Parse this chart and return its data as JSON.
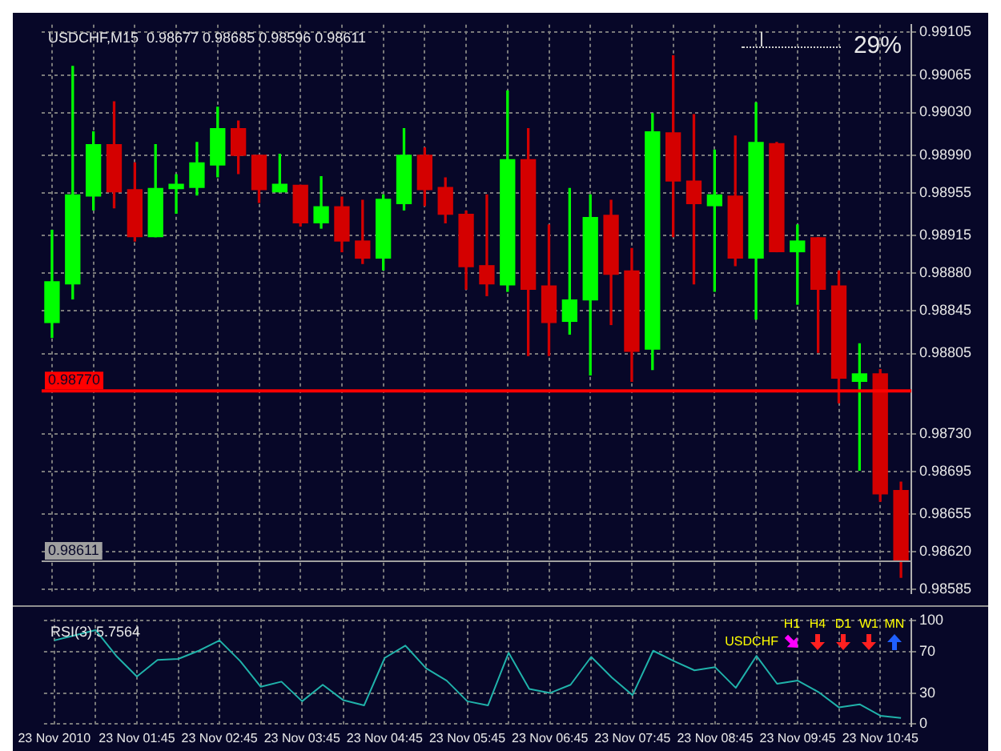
{
  "chart_data": [
    {
      "type": "candlestick",
      "title": "USDCHF,M15  0.98677 0.98685 0.98596 0.98611",
      "categories": [
        null,
        null,
        null,
        null,
        null,
        null,
        null,
        null,
        null,
        null,
        null,
        null,
        null,
        null,
        null,
        null,
        null,
        null,
        null,
        null,
        null,
        null,
        null,
        null,
        null,
        null,
        null,
        null,
        null,
        null,
        null,
        null,
        null,
        null,
        null,
        null,
        null,
        null,
        null,
        null,
        null,
        null
      ],
      "ohlc": [
        [
          0.98834,
          0.9892,
          0.9882,
          0.98872
        ],
        [
          0.9887,
          0.99073,
          0.98856,
          0.98953
        ],
        [
          0.98952,
          0.99012,
          0.98939,
          0.99
        ],
        [
          0.99,
          0.9904,
          0.98941,
          0.98956
        ],
        [
          0.98958,
          0.98983,
          0.9891,
          0.98914
        ],
        [
          0.98914,
          0.99,
          0.98914,
          0.98959
        ],
        [
          0.98959,
          0.98972,
          0.98936,
          0.98963
        ],
        [
          0.9896,
          0.99002,
          0.98953,
          0.98983
        ],
        [
          0.98981,
          0.99035,
          0.9897,
          0.99015
        ],
        [
          0.99015,
          0.99022,
          0.98973,
          0.9899
        ],
        [
          0.9899,
          0.9899,
          0.98946,
          0.98958
        ],
        [
          0.98956,
          0.98991,
          0.98956,
          0.98963
        ],
        [
          0.98962,
          0.98962,
          0.98924,
          0.98927
        ],
        [
          0.98927,
          0.9897,
          0.98922,
          0.98942
        ],
        [
          0.98942,
          0.98951,
          0.989,
          0.9891
        ],
        [
          0.9891,
          0.98948,
          0.98889,
          0.98894
        ],
        [
          0.98894,
          0.98953,
          0.98883,
          0.98949
        ],
        [
          0.98945,
          0.99015,
          0.98939,
          0.9899
        ],
        [
          0.9899,
          0.98997,
          0.98943,
          0.98958
        ],
        [
          0.9896,
          0.98969,
          0.98927,
          0.98935
        ],
        [
          0.98935,
          0.98938,
          0.98865,
          0.98886
        ],
        [
          0.98887,
          0.98953,
          0.98859,
          0.9887
        ],
        [
          0.98869,
          0.9905,
          0.98863,
          0.98986
        ],
        [
          0.98986,
          0.99015,
          0.98803,
          0.98865
        ],
        [
          0.98868,
          0.98925,
          0.98803,
          0.98834
        ],
        [
          0.98835,
          0.98959,
          0.98823,
          0.98855
        ],
        [
          0.98855,
          0.98953,
          0.98785,
          0.98932
        ],
        [
          0.98934,
          0.98948,
          0.98832,
          0.98879
        ],
        [
          0.98882,
          0.98903,
          0.98779,
          0.98807
        ],
        [
          0.98809,
          0.99029,
          0.9879,
          0.99012
        ],
        [
          0.99011,
          0.99083,
          0.98914,
          0.98966
        ],
        [
          0.98966,
          0.99028,
          0.9887,
          0.98945
        ],
        [
          0.98943,
          0.98995,
          0.98863,
          0.98953
        ],
        [
          0.98952,
          0.99008,
          0.98887,
          0.98894
        ],
        [
          0.98894,
          0.99039,
          0.98837,
          0.99002
        ],
        [
          0.99001,
          0.99002,
          0.989,
          0.989
        ],
        [
          0.989,
          0.98925,
          0.98851,
          0.9891
        ],
        [
          0.98913,
          0.98913,
          0.98806,
          0.98865
        ],
        [
          0.98868,
          0.98882,
          0.98759,
          0.98782
        ],
        [
          0.98779,
          0.98814,
          0.98696,
          0.98786
        ],
        [
          0.98786,
          0.9879,
          0.98667,
          0.98674
        ],
        [
          0.98677,
          0.98685,
          0.98596,
          0.98611
        ]
      ],
      "colors": [
        "#00ff00",
        "#00ff00",
        "#00ff00",
        "#d40000",
        "#d40000",
        "#00ff00",
        "#00ff00",
        "#00ff00",
        "#00ff00",
        "#d40000",
        "#d40000",
        "#00ff00",
        "#d40000",
        "#00ff00",
        "#d40000",
        "#d40000",
        "#00ff00",
        "#00ff00",
        "#d40000",
        "#d40000",
        "#d40000",
        "#d40000",
        "#00ff00",
        "#d40000",
        "#d40000",
        "#00ff00",
        "#00ff00",
        "#d40000",
        "#d40000",
        "#00ff00",
        "#d40000",
        "#d40000",
        "#00ff00",
        "#d40000",
        "#00ff00",
        "#d40000",
        "#00ff00",
        "#d40000",
        "#d40000",
        "#00ff00",
        "#d40000",
        "#d40000"
      ],
      "ylim": [
        0.98581,
        0.99112
      ],
      "yticks": [
        0.99105,
        0.99065,
        {
          "value": 0.9903,
          "label": "0.99030"
        },
        {
          "value": 0.9899,
          "label": "0.98990"
        },
        0.98955,
        0.98915,
        {
          "value": 0.9888,
          "label": "0.98880"
        },
        0.98845,
        0.98805,
        {
          "value": 0.9873,
          "label": "0.98730"
        },
        0.98695,
        0.98655,
        {
          "value": 0.9862,
          "label": "0.98620"
        },
        0.98585
      ],
      "grid": true,
      "tick_labels": "y",
      "ref_lines": [
        {
          "axis": "y",
          "value": 0.9877,
          "label": "0.98770",
          "color": "#ff0000"
        },
        {
          "axis": "y",
          "value": 0.98611,
          "label": "0.98611",
          "color": "#a0a0a0"
        }
      ],
      "annotations": [
        "29%"
      ]
    },
    {
      "type": "line",
      "title": "RSI(3) 5.7564",
      "categories": [
        "23 Nov 2010",
        null,
        null,
        null,
        "23 Nov 01:45",
        null,
        null,
        null,
        "23 Nov 02:45",
        null,
        null,
        null,
        "23 Nov 03:45",
        null,
        null,
        null,
        "23 Nov 04:45",
        null,
        null,
        null,
        "23 Nov 05:45",
        null,
        null,
        null,
        "23 Nov 06:45",
        null,
        null,
        null,
        "23 Nov 07:45",
        null,
        null,
        null,
        "23 Nov 08:45",
        null,
        null,
        null,
        "23 Nov 09:45",
        null,
        null,
        null,
        "23 Nov 10:45",
        null
      ],
      "series": [
        {
          "color": "#20b2aa",
          "values": [
            81,
            86,
            91,
            66,
            46,
            62,
            63,
            71,
            81,
            61,
            36,
            41,
            22,
            38,
            23,
            18,
            64,
            76,
            54,
            42,
            22,
            18,
            69,
            34,
            30,
            38,
            65,
            45,
            28,
            71,
            61,
            52,
            55,
            35,
            66,
            39,
            42,
            31,
            16,
            19,
            8,
            5.8
          ]
        }
      ],
      "ylim": [
        -2,
        102
      ],
      "yticks": [
        0,
        30,
        70,
        100
      ],
      "grid": true,
      "marker": "none",
      "annotations": [
        "USDCHF",
        "H1",
        "H4",
        "D1",
        "W1",
        "MN"
      ]
    }
  ]
}
